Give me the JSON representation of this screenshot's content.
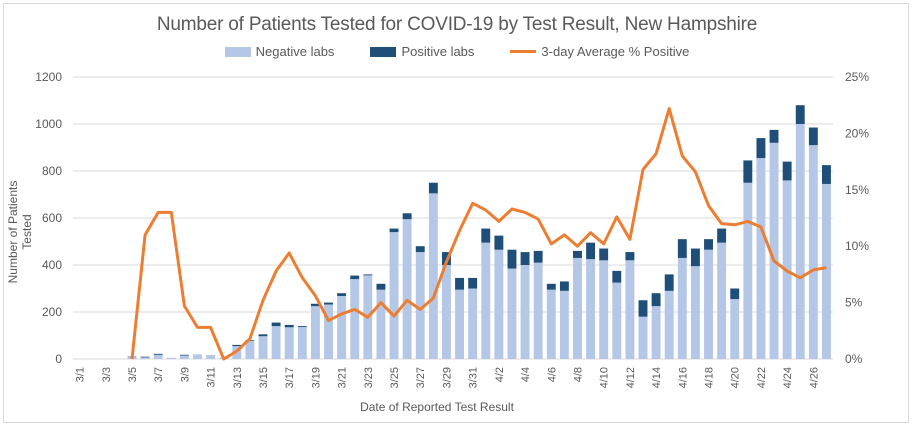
{
  "chart_data": {
    "type": "bar",
    "title": "Number of Patients Tested for COVID-19 by Test Result, New Hampshire",
    "xlabel": "Date of Reported Test Result",
    "ylabel": "Number of Patients Tested",
    "y2label": "",
    "ylim": [
      0,
      1200
    ],
    "y2lim": [
      0,
      25
    ],
    "yticks": [
      "0",
      "200",
      "400",
      "600",
      "800",
      "1000",
      "1200"
    ],
    "y2ticks": [
      "0%",
      "5%",
      "10%",
      "15%",
      "20%",
      "25%"
    ],
    "grid": true,
    "legend_position": "top",
    "stacked": true,
    "categories": [
      "3/1",
      "3/2",
      "3/3",
      "3/4",
      "3/5",
      "3/6",
      "3/7",
      "3/8",
      "3/9",
      "3/10",
      "3/11",
      "3/12",
      "3/13",
      "3/14",
      "3/15",
      "3/16",
      "3/17",
      "3/18",
      "3/19",
      "3/20",
      "3/21",
      "3/22",
      "3/23",
      "3/24",
      "3/25",
      "3/26",
      "3/27",
      "3/28",
      "3/29",
      "3/30",
      "3/31",
      "4/1",
      "4/2",
      "4/3",
      "4/4",
      "4/5",
      "4/6",
      "4/7",
      "4/8",
      "4/9",
      "4/10",
      "4/11",
      "4/12",
      "4/13",
      "4/14",
      "4/15",
      "4/16",
      "4/17",
      "4/18",
      "4/19",
      "4/20",
      "4/21",
      "4/22",
      "4/23",
      "4/24",
      "4/25",
      "4/26",
      "4/27"
    ],
    "tick_labels": [
      "3/1",
      "3/3",
      "3/5",
      "3/7",
      "3/9",
      "3/11",
      "3/13",
      "3/15",
      "3/17",
      "3/19",
      "3/21",
      "3/23",
      "3/25",
      "3/27",
      "3/29",
      "3/31",
      "4/2",
      "4/4",
      "4/6",
      "4/8",
      "4/10",
      "4/12",
      "4/14",
      "4/16",
      "4/18",
      "4/20",
      "4/22",
      "4/24",
      "4/26"
    ],
    "series": [
      {
        "name": "Negative labs",
        "type": "bar",
        "axis": "left",
        "color": "#b4c7e7",
        "values": [
          0,
          0,
          0,
          0,
          8,
          7,
          18,
          5,
          15,
          20,
          17,
          5,
          55,
          77,
          97,
          140,
          135,
          136,
          225,
          232,
          268,
          340,
          356,
          295,
          540,
          595,
          455,
          705,
          400,
          295,
          300,
          495,
          465,
          385,
          400,
          410,
          295,
          290,
          430,
          425,
          420,
          325,
          420,
          180,
          225,
          290,
          430,
          395,
          465,
          495,
          255,
          750,
          855,
          920,
          760,
          1000,
          910,
          745
        ]
      },
      {
        "name": "Positive labs",
        "type": "bar",
        "axis": "left",
        "color": "#1f4e79",
        "values": [
          0,
          0,
          0,
          0,
          2,
          3,
          4,
          0,
          3,
          0,
          0,
          0,
          5,
          3,
          8,
          15,
          10,
          4,
          10,
          8,
          12,
          15,
          4,
          25,
          15,
          25,
          25,
          45,
          55,
          50,
          45,
          60,
          60,
          80,
          55,
          50,
          25,
          40,
          30,
          70,
          50,
          50,
          35,
          70,
          55,
          70,
          80,
          75,
          45,
          60,
          45,
          95,
          85,
          55,
          80,
          80,
          75,
          80
        ]
      },
      {
        "name": "3-day Average % Positive",
        "type": "line",
        "axis": "right",
        "color": "#ed7d31",
        "values": [
          null,
          null,
          null,
          null,
          0,
          11,
          13,
          13,
          4.7,
          2.8,
          2.8,
          0,
          0.7,
          1.8,
          5.2,
          7.8,
          9.4,
          7.2,
          5.6,
          3.4,
          4.0,
          4.4,
          3.7,
          5.0,
          3.8,
          5.2,
          4.4,
          5.4,
          8.6,
          11.4,
          13.8,
          13.2,
          12.2,
          13.3,
          13.0,
          12.4,
          10.2,
          11.0,
          10.0,
          11.2,
          10.2,
          12.6,
          10.6,
          16.8,
          18.2,
          22.2,
          18.0,
          16.6,
          13.6,
          12.0,
          11.9,
          12.2,
          11.7,
          8.7,
          7.8,
          7.2,
          7.9,
          8.1
        ]
      }
    ]
  }
}
